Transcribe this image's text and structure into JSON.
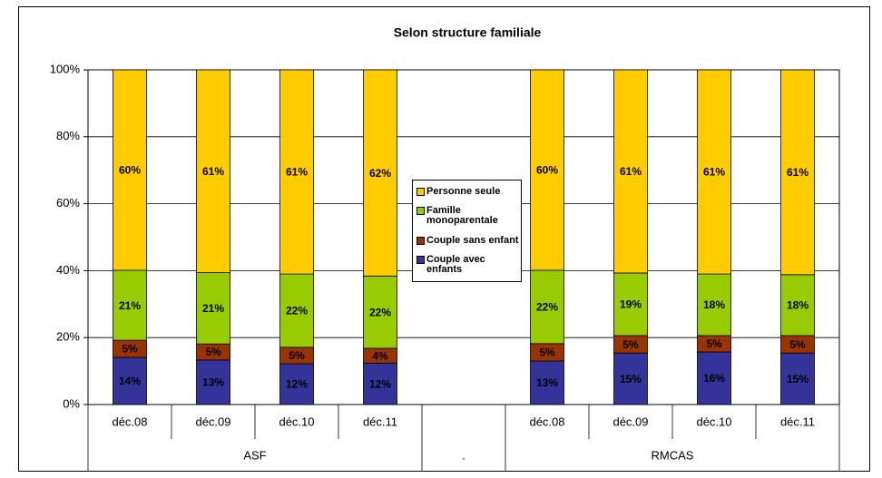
{
  "chart_data": {
    "type": "bar",
    "stacked": true,
    "title": "Selon structure familiale",
    "categories": [
      "déc.08",
      "déc.09",
      "déc.10",
      "déc.11",
      null,
      "déc.08",
      "déc.09",
      "déc.10",
      "déc.11"
    ],
    "groups": [
      {
        "name": "ASF",
        "span": 4
      },
      {
        "name": ".",
        "span": 1
      },
      {
        "name": "RMCAS",
        "span": 4
      }
    ],
    "series": [
      {
        "name": "Couple avec enfants",
        "color": "#333399",
        "values": [
          14.1,
          13.3,
          12.2,
          12.4,
          null,
          13.0,
          15.4,
          15.7,
          15.4
        ],
        "value_labels": [
          "14%",
          "13%",
          "12%",
          "12%",
          null,
          "13%",
          "15%",
          "16%",
          "15%"
        ]
      },
      {
        "name": "Couple sans enfant",
        "color": "#993300",
        "values": [
          5.1,
          4.8,
          4.9,
          4.4,
          null,
          5.2,
          5.2,
          4.9,
          5.2
        ],
        "value_labels": [
          "5%",
          "5%",
          "5%",
          "4%",
          null,
          "5%",
          "5%",
          "5%",
          "5%"
        ]
      },
      {
        "name": "Famille monoparentale",
        "color": "#99cc00",
        "values": [
          20.9,
          21.3,
          21.9,
          21.6,
          null,
          21.9,
          18.7,
          18.4,
          18.2
        ],
        "value_labels": [
          "21%",
          "21%",
          "22%",
          "22%",
          null,
          "22%",
          "19%",
          "18%",
          "18%"
        ]
      },
      {
        "name": "Personne seule",
        "color": "#ffcc00",
        "values": [
          59.9,
          60.6,
          61.0,
          61.6,
          null,
          59.9,
          60.7,
          61.0,
          61.2
        ],
        "value_labels": [
          "60%",
          "61%",
          "61%",
          "62%",
          null,
          "60%",
          "61%",
          "61%",
          "61%"
        ]
      }
    ],
    "ylim": [
      0,
      100
    ],
    "yticks": [
      {
        "value": 0,
        "label": "0%"
      },
      {
        "value": 20,
        "label": "20%"
      },
      {
        "value": 40,
        "label": "40%"
      },
      {
        "value": 60,
        "label": "60%"
      },
      {
        "value": 80,
        "label": "80%"
      },
      {
        "value": 100,
        "label": "100%"
      }
    ],
    "grid": true
  }
}
